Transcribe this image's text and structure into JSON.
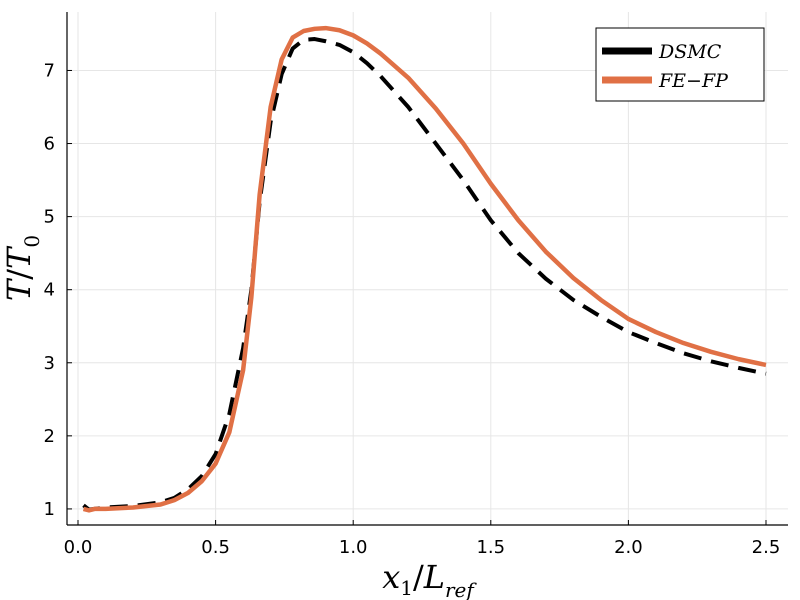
{
  "chart_data": {
    "type": "line",
    "title": "",
    "xlabel": {
      "base": "x",
      "sub": "1",
      "slash": "/",
      "base2": "L",
      "sub2": "ref"
    },
    "ylabel": {
      "base": "T",
      "slash": "/",
      "base2": "T",
      "sub2": "0"
    },
    "xlim": [
      -0.04,
      2.58
    ],
    "ylim": [
      0.78,
      7.8
    ],
    "xticks": [
      0.0,
      0.5,
      1.0,
      1.5,
      2.0,
      2.5
    ],
    "xtick_labels": [
      "0.0",
      "0.5",
      "1.0",
      "1.5",
      "2.0",
      "2.5"
    ],
    "yticks": [
      1,
      2,
      3,
      4,
      5,
      6,
      7
    ],
    "ytick_labels": [
      "1",
      "2",
      "3",
      "4",
      "5",
      "6",
      "7"
    ],
    "grid": true,
    "legend_position": "top-right",
    "series": [
      {
        "name": "DSMC",
        "color": "#000000",
        "style": "dashed",
        "x": [
          0.02,
          0.04,
          0.06,
          0.1,
          0.2,
          0.3,
          0.35,
          0.4,
          0.45,
          0.5,
          0.55,
          0.6,
          0.63,
          0.66,
          0.7,
          0.74,
          0.78,
          0.82,
          0.86,
          0.9,
          0.95,
          1.0,
          1.05,
          1.1,
          1.2,
          1.3,
          1.4,
          1.5,
          1.6,
          1.7,
          1.8,
          1.9,
          2.0,
          2.1,
          2.2,
          2.3,
          2.4,
          2.5
        ],
        "y": [
          1.05,
          0.99,
          1.0,
          1.02,
          1.04,
          1.09,
          1.15,
          1.27,
          1.45,
          1.75,
          2.3,
          3.2,
          4.0,
          5.2,
          6.3,
          6.95,
          7.3,
          7.42,
          7.43,
          7.4,
          7.35,
          7.25,
          7.1,
          6.92,
          6.5,
          6.0,
          5.5,
          4.95,
          4.5,
          4.15,
          3.86,
          3.63,
          3.42,
          3.27,
          3.13,
          3.02,
          2.93,
          2.85
        ]
      },
      {
        "name": "FE-FP",
        "color": "#e07045",
        "style": "solid",
        "x": [
          0.02,
          0.04,
          0.06,
          0.1,
          0.2,
          0.3,
          0.35,
          0.4,
          0.45,
          0.5,
          0.55,
          0.6,
          0.63,
          0.66,
          0.7,
          0.74,
          0.78,
          0.82,
          0.86,
          0.9,
          0.95,
          1.0,
          1.05,
          1.1,
          1.2,
          1.3,
          1.4,
          1.5,
          1.6,
          1.7,
          1.8,
          1.9,
          2.0,
          2.1,
          2.2,
          2.3,
          2.4,
          2.5
        ],
        "y": [
          1.0,
          0.98,
          1.0,
          1.0,
          1.02,
          1.06,
          1.12,
          1.22,
          1.38,
          1.62,
          2.05,
          2.9,
          3.9,
          5.3,
          6.5,
          7.15,
          7.45,
          7.54,
          7.57,
          7.58,
          7.55,
          7.48,
          7.37,
          7.23,
          6.9,
          6.48,
          6.0,
          5.45,
          4.95,
          4.52,
          4.16,
          3.86,
          3.6,
          3.42,
          3.27,
          3.15,
          3.05,
          2.97
        ]
      }
    ],
    "legend": [
      {
        "label": "DSMC",
        "color": "#000000"
      },
      {
        "label": "FE−FP",
        "color": "#e07045"
      }
    ]
  }
}
